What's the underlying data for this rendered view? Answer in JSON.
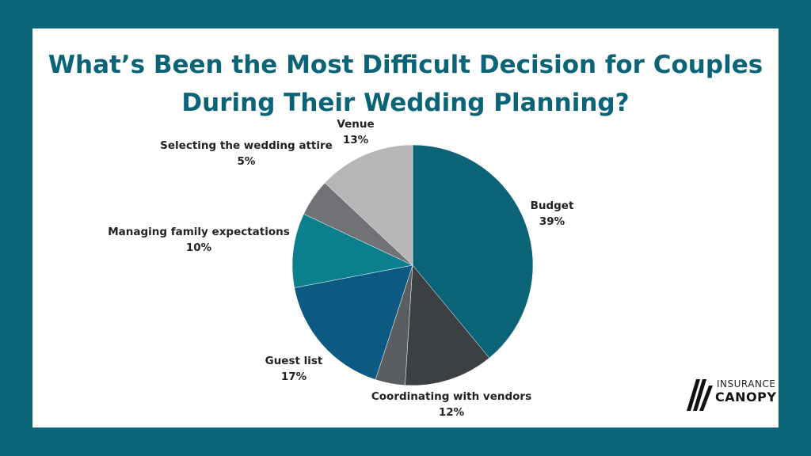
{
  "title_line1": "What’s Been the Most Difficult Decision for Couples",
  "title_line2": "During Their Wedding Planning?",
  "chart_data": {
    "type": "pie",
    "slices": [
      {
        "label": "Budget",
        "value": 39,
        "display": "39%",
        "color": "#0a6376"
      },
      {
        "label": "Coordinating with vendors",
        "value": 12,
        "display": "12%",
        "color": "#3c4043"
      },
      {
        "label": "",
        "value": 4,
        "display": "",
        "color": "#5a5e61"
      },
      {
        "label": "Guest list",
        "value": 17,
        "display": "17%",
        "color": "#0c5a82"
      },
      {
        "label": "Managing family expectations",
        "value": 10,
        "display": "10%",
        "color": "#0a7f8e"
      },
      {
        "label": "Selecting the wedding attire",
        "value": 5,
        "display": "5%",
        "color": "#707275"
      },
      {
        "label": "Venue",
        "value": 13,
        "display": "13%",
        "color": "#b5b6b8"
      }
    ]
  },
  "logo": {
    "line1": "INSURANCE",
    "line2": "CANOPY"
  },
  "colors": {
    "background": "#0a6376",
    "card": "#ffffff",
    "title": "#0a6376"
  }
}
